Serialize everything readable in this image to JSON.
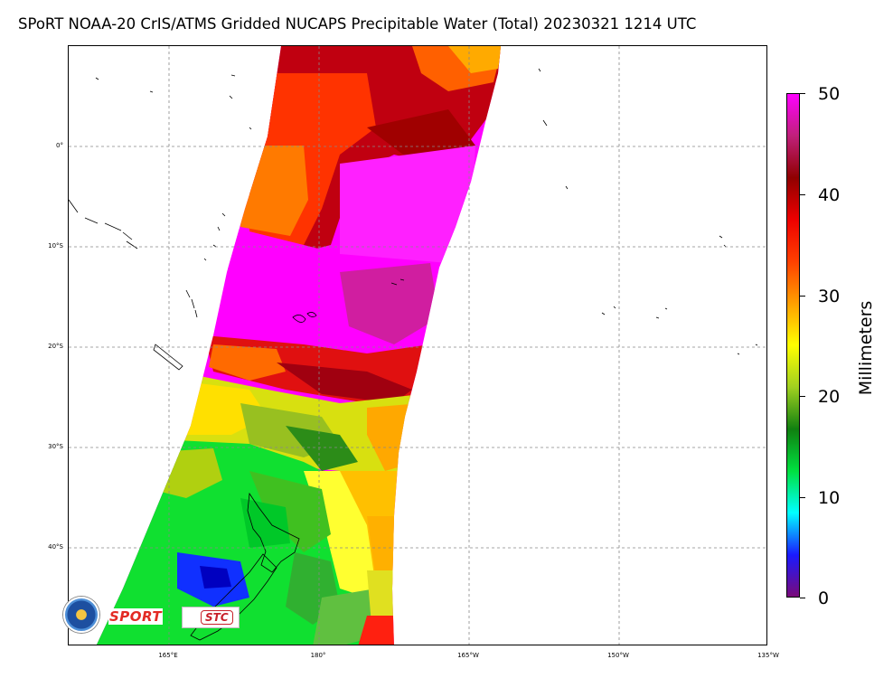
{
  "title": "SPoRT NOAA-20 CrIS/ATMS Gridded NUCAPS Precipitable Water (Total) 20230321 1214 UTC",
  "map": {
    "lat_labels": [
      "0°",
      "10°S",
      "20°S",
      "30°S",
      "40°S"
    ],
    "lon_labels": [
      "165°E",
      "180°",
      "165°W",
      "150°W",
      "135°W"
    ],
    "gridlines": "dashed gray"
  },
  "colorbar": {
    "label": "Millimeters",
    "ticks": [
      "0",
      "10",
      "20",
      "30",
      "40",
      "50"
    ],
    "colors": [
      "#7a0a7a",
      "#1a1aff",
      "#00ffff",
      "#00e040",
      "#108010",
      "#a0d020",
      "#ffff00",
      "#ffa000",
      "#ff4000",
      "#ee0000",
      "#900000",
      "#c0207a",
      "#ff00ff"
    ]
  },
  "logos": {
    "sport": "SPORT",
    "stc": "STC"
  }
}
